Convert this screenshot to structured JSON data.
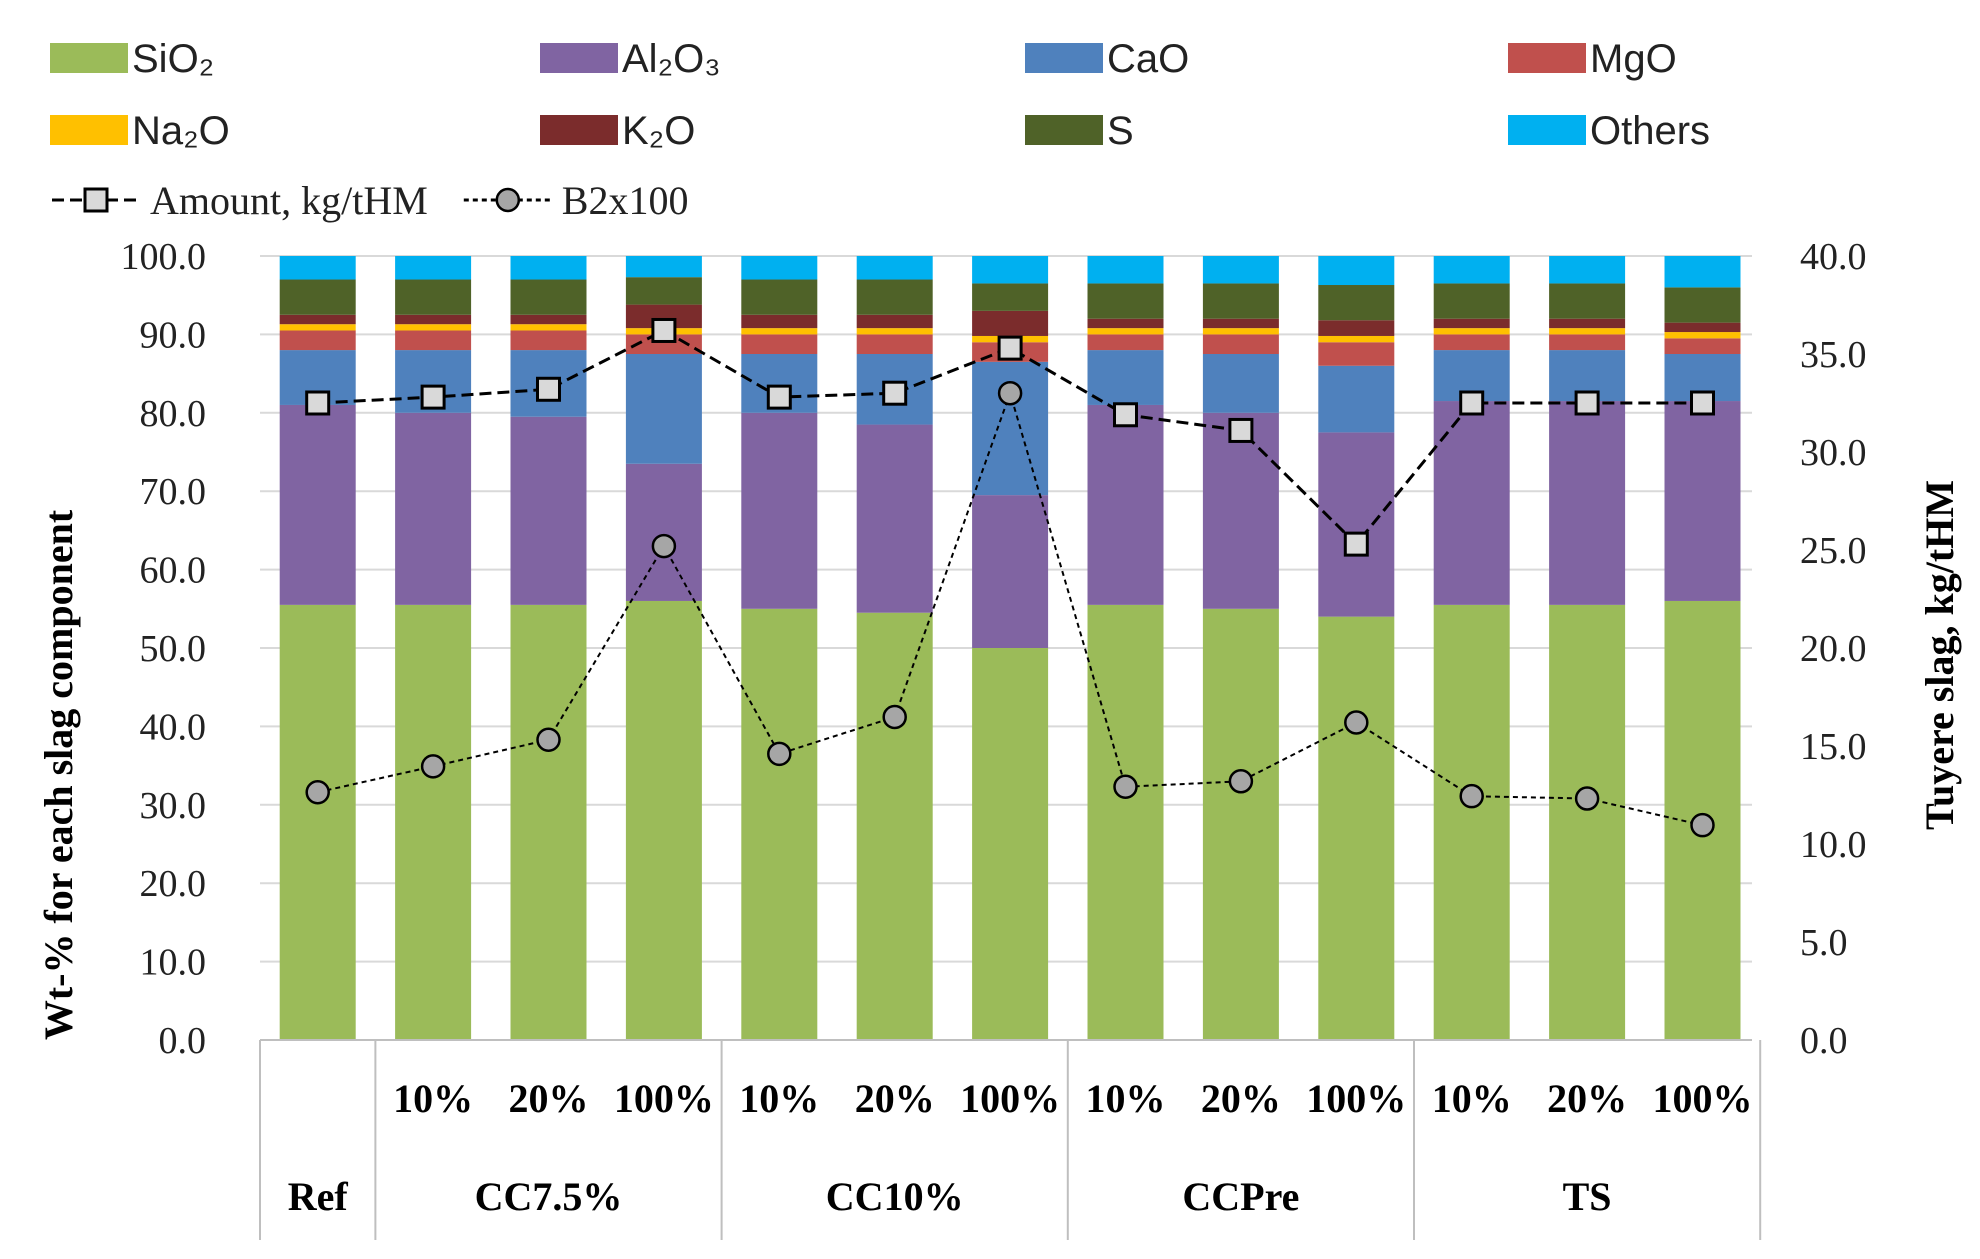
{
  "chart_data": {
    "type": "bar",
    "stacked": true,
    "categories": [
      "Ref",
      "10%",
      "20%",
      "100%",
      "10%",
      "20%",
      "100%",
      "10%",
      "20%",
      "100%",
      "10%",
      "20%",
      "100%"
    ],
    "groups": [
      {
        "label": "Ref",
        "count": 1
      },
      {
        "label": "CC7.5%",
        "count": 3
      },
      {
        "label": "CC10%",
        "count": 3
      },
      {
        "label": "CCPre",
        "count": 3
      },
      {
        "label": "TS",
        "count": 3
      }
    ],
    "series": [
      {
        "name": "SiO₂",
        "color": "#9bbb59",
        "values": [
          55.5,
          55.5,
          55.5,
          56.0,
          55.0,
          54.5,
          50.0,
          55.5,
          55.0,
          54.0,
          55.5,
          55.5,
          56.0
        ]
      },
      {
        "name": "Al₂O₃",
        "color": "#8064a2",
        "values": [
          25.5,
          24.5,
          24.0,
          17.5,
          25.0,
          24.0,
          19.5,
          25.5,
          25.0,
          23.5,
          26.0,
          26.0,
          25.5
        ]
      },
      {
        "name": "CaO",
        "color": "#4f81bd",
        "values": [
          7.0,
          8.0,
          8.5,
          14.0,
          7.5,
          9.0,
          17.0,
          7.0,
          7.5,
          8.5,
          6.5,
          6.5,
          6.0
        ]
      },
      {
        "name": "MgO",
        "color": "#c0504d",
        "values": [
          2.5,
          2.5,
          2.5,
          2.5,
          2.5,
          2.5,
          2.5,
          2.0,
          2.5,
          3.0,
          2.0,
          2.0,
          2.0
        ]
      },
      {
        "name": "Na₂O",
        "color": "#ffc000",
        "values": [
          0.8,
          0.8,
          0.8,
          0.8,
          0.8,
          0.8,
          0.8,
          0.8,
          0.8,
          0.8,
          0.8,
          0.8,
          0.8
        ]
      },
      {
        "name": "K₂O",
        "color": "#7b2c2c",
        "values": [
          1.2,
          1.2,
          1.2,
          3.0,
          1.7,
          1.7,
          3.2,
          1.2,
          1.2,
          2.0,
          1.2,
          1.2,
          1.2
        ]
      },
      {
        "name": "S",
        "color": "#4f6228",
        "values": [
          4.5,
          4.5,
          4.5,
          3.5,
          4.5,
          4.5,
          3.5,
          4.5,
          4.5,
          4.5,
          4.5,
          4.5,
          4.5
        ]
      },
      {
        "name": "Others",
        "color": "#00b0f0",
        "values": [
          3.0,
          3.0,
          3.0,
          2.7,
          3.0,
          3.0,
          3.5,
          3.5,
          3.5,
          3.7,
          3.5,
          3.5,
          4.0
        ]
      }
    ],
    "lines": [
      {
        "name": "Amount, kg/tHM",
        "axis": "right",
        "marker": "square",
        "dash": "long",
        "values": [
          32.5,
          32.8,
          33.2,
          36.2,
          32.8,
          33.0,
          35.3,
          31.9,
          31.1,
          25.3,
          32.5,
          32.5,
          32.5
        ]
      },
      {
        "name": "B2x100",
        "axis": "left",
        "marker": "circle",
        "dash": "short",
        "values": [
          31.6,
          34.9,
          38.3,
          63.0,
          36.5,
          41.2,
          82.5,
          32.3,
          33.0,
          40.5,
          31.1,
          30.8,
          27.4
        ]
      }
    ],
    "ylabel": "Wt-% for each slag component",
    "ylabel_right": "Tuyere slag, kg/tHM",
    "ylim": [
      0,
      100
    ],
    "ylim_right": [
      0,
      40
    ],
    "yticks": [
      "0.0",
      "10.0",
      "20.0",
      "30.0",
      "40.0",
      "50.0",
      "60.0",
      "70.0",
      "80.0",
      "90.0",
      "100.0"
    ],
    "yticks_right": [
      "0.0",
      "5.0",
      "10.0",
      "15.0",
      "20.0",
      "25.0",
      "30.0",
      "35.0",
      "40.0"
    ],
    "grid": true,
    "legend": "top"
  }
}
